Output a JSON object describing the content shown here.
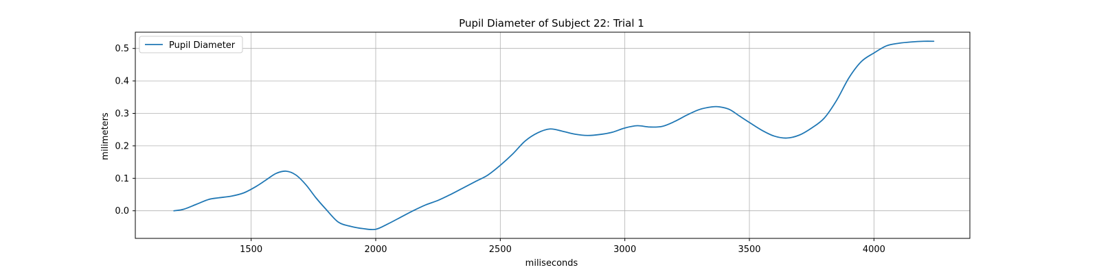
{
  "chart_data": {
    "type": "line",
    "title": "Pupil Diameter of Subject 22: Trial 1",
    "xlabel": "miliseconds",
    "ylabel": "milimeters",
    "xlim": [
      1035,
      4385
    ],
    "ylim": [
      -0.085,
      0.55
    ],
    "xticks": [
      1500,
      2000,
      2500,
      3000,
      3500,
      4000
    ],
    "yticks": [
      0.0,
      0.1,
      0.2,
      0.3,
      0.4,
      0.5
    ],
    "xtick_labels": [
      "1500",
      "2000",
      "2500",
      "3000",
      "3500",
      "4000"
    ],
    "ytick_labels": [
      "0.0",
      "0.1",
      "0.2",
      "0.3",
      "0.4",
      "0.5"
    ],
    "grid": true,
    "legend_position": "top-left",
    "series": [
      {
        "name": "Pupil Diameter",
        "color": "#1f77b4",
        "x": [
          1190,
          1230,
          1280,
          1330,
          1370,
          1420,
          1470,
          1520,
          1560,
          1600,
          1640,
          1680,
          1720,
          1760,
          1800,
          1850,
          1900,
          1950,
          2000,
          2050,
          2100,
          2150,
          2200,
          2250,
          2300,
          2350,
          2400,
          2450,
          2500,
          2550,
          2600,
          2650,
          2700,
          2750,
          2800,
          2850,
          2900,
          2950,
          3000,
          3050,
          3100,
          3150,
          3200,
          3250,
          3300,
          3350,
          3380,
          3420,
          3460,
          3500,
          3550,
          3600,
          3650,
          3700,
          3750,
          3800,
          3850,
          3900,
          3950,
          4000,
          4050,
          4100,
          4150,
          4200,
          4240
        ],
        "y": [
          0.0,
          0.005,
          0.02,
          0.035,
          0.04,
          0.045,
          0.055,
          0.075,
          0.095,
          0.115,
          0.122,
          0.11,
          0.08,
          0.04,
          0.005,
          -0.035,
          -0.048,
          -0.055,
          -0.057,
          -0.04,
          -0.02,
          0.0,
          0.018,
          0.032,
          0.05,
          0.07,
          0.09,
          0.11,
          0.14,
          0.175,
          0.215,
          0.24,
          0.252,
          0.245,
          0.236,
          0.232,
          0.235,
          0.242,
          0.255,
          0.262,
          0.258,
          0.26,
          0.275,
          0.295,
          0.312,
          0.32,
          0.32,
          0.312,
          0.292,
          0.272,
          0.248,
          0.23,
          0.224,
          0.233,
          0.255,
          0.285,
          0.34,
          0.41,
          0.46,
          0.486,
          0.508,
          0.516,
          0.52,
          0.522,
          0.522
        ]
      }
    ]
  }
}
